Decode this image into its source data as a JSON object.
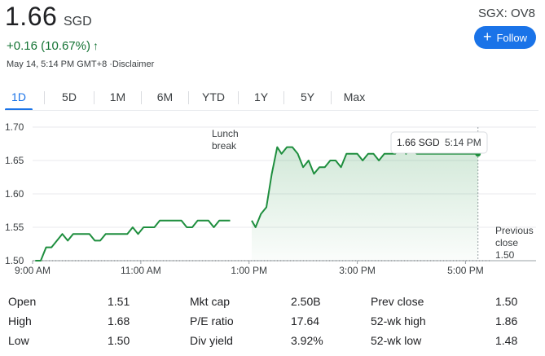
{
  "header": {
    "price": "1.66",
    "currency": "SGD",
    "ticker": "SGX: OV8",
    "change": "+0.16 (10.67%)",
    "change_arrow": "↑",
    "timestamp": "May 14, 5:14 PM GMT+8",
    "disclaimer": "·Disclaimer",
    "follow_label": "Follow",
    "follow_icon": "plus-icon"
  },
  "tabs": [
    {
      "label": "1D",
      "active": true
    },
    {
      "label": "5D"
    },
    {
      "label": "1M"
    },
    {
      "label": "6M"
    },
    {
      "label": "YTD"
    },
    {
      "label": "1Y"
    },
    {
      "label": "5Y"
    },
    {
      "label": "Max"
    }
  ],
  "chart_data": {
    "type": "line",
    "ylim": [
      1.5,
      1.7
    ],
    "y_ticks": [
      "1.70",
      "1.65",
      "1.60",
      "1.55",
      "1.50"
    ],
    "x_ticks": [
      "9:00 AM",
      "11:00 AM",
      "1:00 PM",
      "3:00 PM",
      "5:00 PM"
    ],
    "x_tick_hours": [
      9,
      11,
      13,
      15,
      17
    ],
    "x_range_hours": [
      9,
      17.4
    ],
    "line_color": "#1e8e3e",
    "series": [
      {
        "segment": "morning",
        "points": [
          [
            9.05,
            1.5
          ],
          [
            9.15,
            1.5
          ],
          [
            9.25,
            1.52
          ],
          [
            9.35,
            1.52
          ],
          [
            9.45,
            1.53
          ],
          [
            9.55,
            1.54
          ],
          [
            9.65,
            1.53
          ],
          [
            9.75,
            1.54
          ],
          [
            9.85,
            1.54
          ],
          [
            9.95,
            1.54
          ],
          [
            10.05,
            1.54
          ],
          [
            10.15,
            1.53
          ],
          [
            10.25,
            1.53
          ],
          [
            10.35,
            1.54
          ],
          [
            10.45,
            1.54
          ],
          [
            10.55,
            1.54
          ],
          [
            10.65,
            1.54
          ],
          [
            10.75,
            1.54
          ],
          [
            10.85,
            1.55
          ],
          [
            10.95,
            1.54
          ],
          [
            11.05,
            1.55
          ],
          [
            11.15,
            1.55
          ],
          [
            11.25,
            1.55
          ],
          [
            11.35,
            1.56
          ],
          [
            11.45,
            1.56
          ],
          [
            11.55,
            1.56
          ],
          [
            11.65,
            1.56
          ],
          [
            11.75,
            1.56
          ],
          [
            11.85,
            1.55
          ],
          [
            11.95,
            1.55
          ],
          [
            12.05,
            1.56
          ],
          [
            12.15,
            1.56
          ],
          [
            12.25,
            1.56
          ],
          [
            12.35,
            1.55
          ],
          [
            12.45,
            1.56
          ],
          [
            12.55,
            1.56
          ],
          [
            12.65,
            1.56
          ]
        ]
      },
      {
        "segment": "afternoon",
        "points": [
          [
            13.05,
            1.56
          ],
          [
            13.12,
            1.55
          ],
          [
            13.22,
            1.57
          ],
          [
            13.32,
            1.58
          ],
          [
            13.42,
            1.63
          ],
          [
            13.52,
            1.67
          ],
          [
            13.6,
            1.66
          ],
          [
            13.7,
            1.67
          ],
          [
            13.8,
            1.67
          ],
          [
            13.9,
            1.66
          ],
          [
            14.0,
            1.64
          ],
          [
            14.1,
            1.65
          ],
          [
            14.2,
            1.63
          ],
          [
            14.3,
            1.64
          ],
          [
            14.4,
            1.64
          ],
          [
            14.5,
            1.65
          ],
          [
            14.6,
            1.65
          ],
          [
            14.7,
            1.64
          ],
          [
            14.8,
            1.66
          ],
          [
            14.9,
            1.66
          ],
          [
            15.0,
            1.66
          ],
          [
            15.1,
            1.65
          ],
          [
            15.2,
            1.66
          ],
          [
            15.3,
            1.66
          ],
          [
            15.4,
            1.65
          ],
          [
            15.5,
            1.66
          ],
          [
            15.6,
            1.66
          ],
          [
            15.7,
            1.66
          ],
          [
            15.8,
            1.67
          ],
          [
            15.9,
            1.66
          ],
          [
            16.0,
            1.67
          ],
          [
            16.1,
            1.66
          ],
          [
            16.2,
            1.66
          ],
          [
            16.3,
            1.66
          ],
          [
            16.4,
            1.66
          ],
          [
            16.5,
            1.66
          ],
          [
            16.6,
            1.66
          ],
          [
            16.7,
            1.66
          ],
          [
            16.8,
            1.66
          ],
          [
            16.9,
            1.66
          ],
          [
            17.0,
            1.66
          ],
          [
            17.1,
            1.66
          ],
          [
            17.2,
            1.66
          ],
          [
            17.23,
            1.66
          ]
        ]
      }
    ],
    "break_label_line1": "Lunch",
    "break_label_line2": "break",
    "tooltip_price": "1.66 SGD",
    "tooltip_time": "5:14 PM",
    "prev_close_line1": "Previous",
    "prev_close_line2": "close",
    "prev_close_value": "1.50"
  },
  "stats": {
    "rows": [
      [
        {
          "label": "Open",
          "value": "1.51"
        },
        {
          "label": "Mkt cap",
          "value": "2.50B"
        },
        {
          "label": "Prev close",
          "value": "1.50"
        }
      ],
      [
        {
          "label": "High",
          "value": "1.68"
        },
        {
          "label": "P/E ratio",
          "value": "17.64"
        },
        {
          "label": "52-wk high",
          "value": "1.86"
        }
      ],
      [
        {
          "label": "Low",
          "value": "1.50"
        },
        {
          "label": "Div yield",
          "value": "3.92%"
        },
        {
          "label": "52-wk low",
          "value": "1.48"
        }
      ]
    ]
  }
}
